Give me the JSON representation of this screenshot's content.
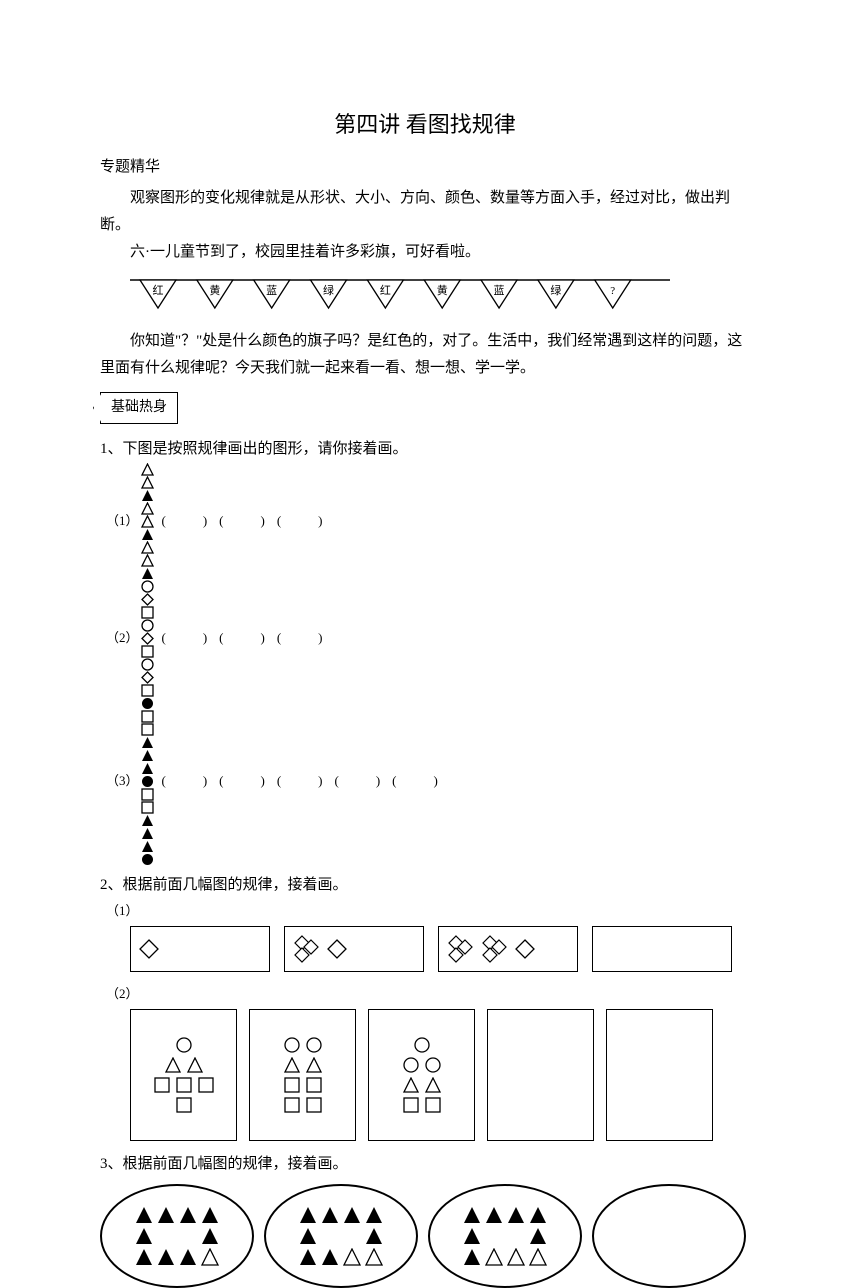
{
  "title": "第四讲 看图找规律",
  "subtitle": "专题精华",
  "intro": "观察图形的变化规律就是从形状、大小、方向、颜色、数量等方面入手，经过对比，做出判断。",
  "flag_intro": "六·一儿童节到了，校园里挂着许多彩旗，可好看啦。",
  "flags": [
    "红",
    "黄",
    "蓝",
    "绿",
    "红",
    "黄",
    "蓝",
    "绿",
    "?"
  ],
  "after_flags": "你知道\"？\"处是什么颜色的旗子吗？是红色的，对了。生活中，我们经常遇到这样的问题，这里面有什么规律呢？今天我们就一起来看一看、想一想、学一学。",
  "section_label": "基础热身",
  "q1": "1、下图是按照规律画出的图形，请你接着画。",
  "q1_sub1_label": "（1）",
  "q1_sub1_shapes": [
    "tw",
    "tw",
    "tb",
    "tw",
    "tw",
    "tb",
    "tw",
    "tw",
    "tb"
  ],
  "q1_sub1_blanks": 3,
  "q1_sub2_label": "（2）",
  "q1_sub2_shapes": [
    "cw",
    "dw",
    "sqw",
    "cw",
    "dw",
    "sqw",
    "cw",
    "dw",
    "sqw"
  ],
  "q1_sub2_blanks": 3,
  "q1_sub3_label": "（3）",
  "q1_sub3_shapes": [
    "cb",
    "sqw",
    "sqw",
    "tb",
    "tb",
    "tb",
    "cb",
    "sqw",
    "sqw",
    "tb",
    "tb",
    "tb",
    "cb"
  ],
  "q1_sub3_blanks": 5,
  "q2": "2、根据前面几幅图的规律，接着画。",
  "q2_sub1_label": "（1）",
  "q2_sub1_boxes": [
    [
      {
        "type": "dw",
        "n": 1
      }
    ],
    [
      {
        "type": "dcluster",
        "n": 3
      },
      {
        "type": "dw",
        "n": 1
      }
    ],
    [
      {
        "type": "dcluster",
        "n": 3
      },
      {
        "type": "dcluster",
        "n": 3
      },
      {
        "type": "dw",
        "n": 1
      }
    ],
    []
  ],
  "q2_sub2_label": "（2）",
  "q2_sub2_boxes": [
    [
      [
        "cw"
      ],
      [
        "tw",
        "tw"
      ],
      [
        "sqw",
        "sqw",
        "sqw"
      ],
      [
        "sqw"
      ]
    ],
    [
      [
        "cw",
        "cw"
      ],
      [
        "tw",
        "tw"
      ],
      [
        "sqw",
        "sqw"
      ],
      [
        "sqw",
        "sqw"
      ]
    ],
    [
      [
        "cw"
      ],
      [
        "cw",
        "cw"
      ],
      [
        "tw",
        "tw"
      ],
      [
        "sqw",
        "sqw"
      ]
    ],
    [],
    []
  ],
  "q3": "3、根据前面几幅图的规律，接着画。",
  "q3_ovals": [
    [
      [
        "tb",
        "tb",
        "tb",
        "tb"
      ],
      [
        "tb",
        "",
        "",
        "tb"
      ],
      [
        "tb",
        "tb",
        "tb",
        "tw"
      ]
    ],
    [
      [
        "tb",
        "tb",
        "tb",
        "tb"
      ],
      [
        "tb",
        "",
        "",
        "tb"
      ],
      [
        "tb",
        "tb",
        "tw",
        "tw"
      ]
    ],
    [
      [
        "tb",
        "tb",
        "tb",
        "tb"
      ],
      [
        "tb",
        "",
        "",
        "tb"
      ],
      [
        "tb",
        "tw",
        "tw",
        "tw"
      ]
    ],
    []
  ],
  "colors": {
    "stroke": "#000000",
    "fill_black": "#000000",
    "fill_white": "#ffffff"
  }
}
